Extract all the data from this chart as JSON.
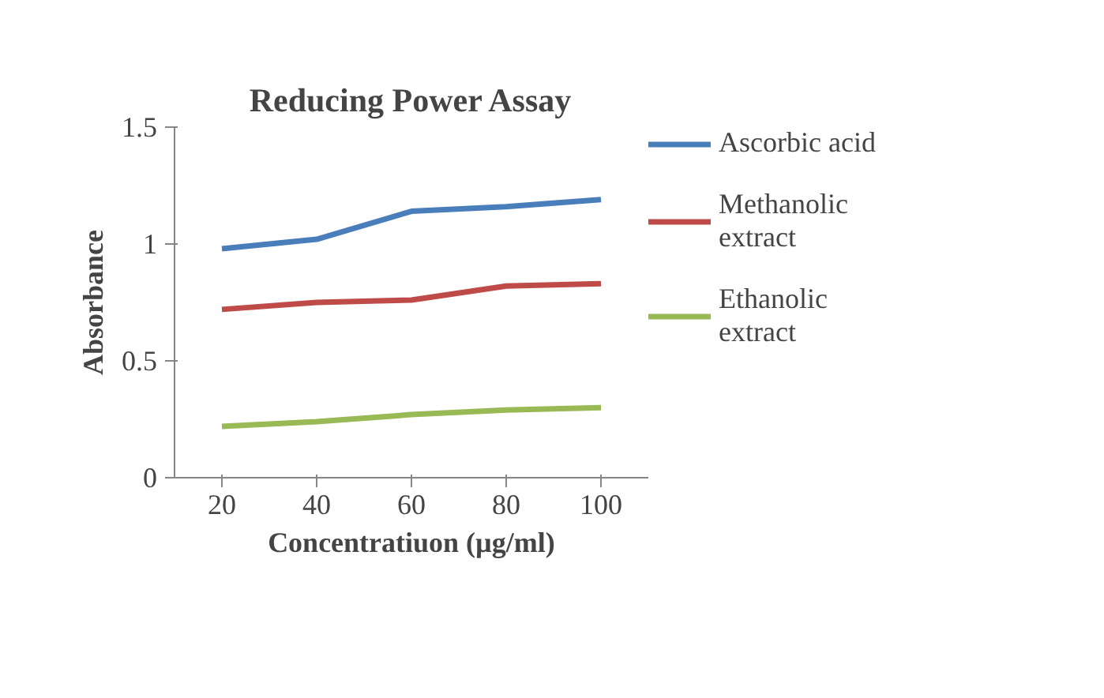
{
  "chart_data": {
    "type": "line",
    "title": "Reducing Power Assay",
    "xlabel": "Concentratiuon (µg/ml)",
    "ylabel": "Absorbance",
    "categories": [
      "20",
      "40",
      "60",
      "80",
      "100"
    ],
    "ylim": [
      0,
      1.5
    ],
    "yticks": [
      0,
      0.5,
      1,
      1.5
    ],
    "grid": false,
    "legend": "right",
    "marker": "none",
    "line_style": "solid",
    "series": [
      {
        "name": "Ascorbic acid",
        "color": "#4a7ebb",
        "values": [
          0.98,
          1.02,
          1.14,
          1.16,
          1.19
        ]
      },
      {
        "name": "Methanolic extract",
        "color": "#be4b48",
        "values": [
          0.72,
          0.75,
          0.76,
          0.82,
          0.83
        ]
      },
      {
        "name": "Ethanolic extract",
        "color": "#98b954",
        "values": [
          0.22,
          0.24,
          0.27,
          0.29,
          0.3
        ]
      }
    ]
  }
}
